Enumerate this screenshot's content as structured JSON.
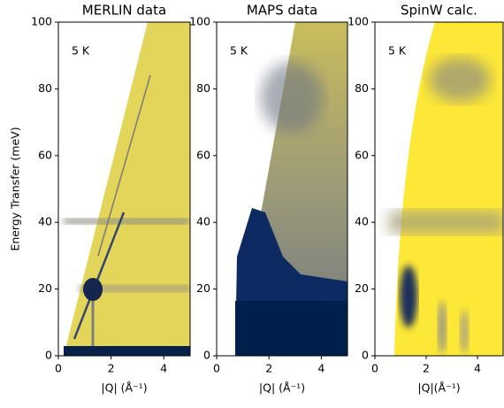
{
  "chart_data": [
    {
      "type": "heatmap",
      "title": "MERLIN data",
      "xlabel": "|Q| (Å⁻¹)",
      "ylabel": "Energy Transfer (meV)",
      "annotation": "5 K",
      "xlim": [
        0,
        5
      ],
      "ylim": [
        0,
        100
      ],
      "xticks": [
        0,
        2,
        4
      ],
      "yticks": [
        0,
        20,
        40,
        60,
        80,
        100
      ]
    },
    {
      "type": "heatmap",
      "title": "MAPS data",
      "xlabel": "|Q| (Å⁻¹)",
      "annotation": "5 K",
      "xlim": [
        0,
        5
      ],
      "ylim": [
        0,
        100
      ],
      "xticks": [
        0,
        2,
        4
      ],
      "yticks": [
        0,
        20,
        40,
        60,
        80,
        100
      ]
    },
    {
      "type": "heatmap",
      "title": "SpinW calc.",
      "xlabel": "|Q|(Å⁻¹)",
      "annotation": "5 K",
      "xlim": [
        0,
        5
      ],
      "ylim": [
        0,
        100
      ],
      "xticks": [
        0,
        2,
        4
      ],
      "yticks": [
        0,
        20,
        40,
        60,
        80,
        100
      ]
    }
  ]
}
